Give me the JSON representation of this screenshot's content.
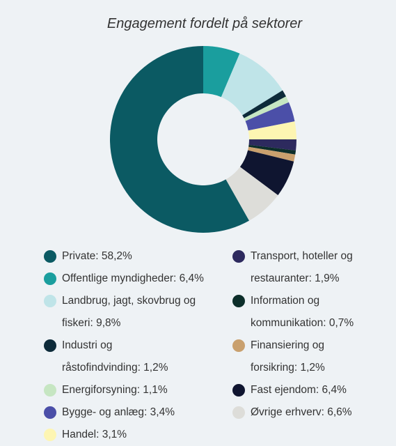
{
  "chart_data": {
    "type": "donut",
    "title": "Engagement fordelt på sektorer",
    "categories": [
      "Private: 58,2%",
      "Offentlige myndigheder: 6,4%",
      "Landbrug, jagt, skovbrug og fiskeri: 9,8%",
      "Industri og råstofindvinding: 1,2%",
      "Energiforsyning: 1,1%",
      "Bygge- og anlæg: 3,4%",
      "Handel: 3,1%",
      "Transport, hoteller og restauranter: 1,9%",
      "Information og kommunikation: 0,7%",
      "Finansiering og forsikring: 1,2%",
      "Fast ejendom: 6,4%",
      "Øvrige erhverv: 6,6%"
    ],
    "values": [
      58.2,
      6.4,
      9.8,
      1.2,
      1.1,
      3.4,
      3.1,
      1.9,
      0.7,
      1.2,
      6.4,
      6.6
    ],
    "colors": [
      "#0b5a63",
      "#1a9e9e",
      "#bfe4e8",
      "#0d2b3a",
      "#c6e6c2",
      "#4b4fa8",
      "#fdf5b2",
      "#2d2a5e",
      "#0c2e2a",
      "#c9a06e",
      "#0f1530",
      "#ddddd9"
    ]
  }
}
